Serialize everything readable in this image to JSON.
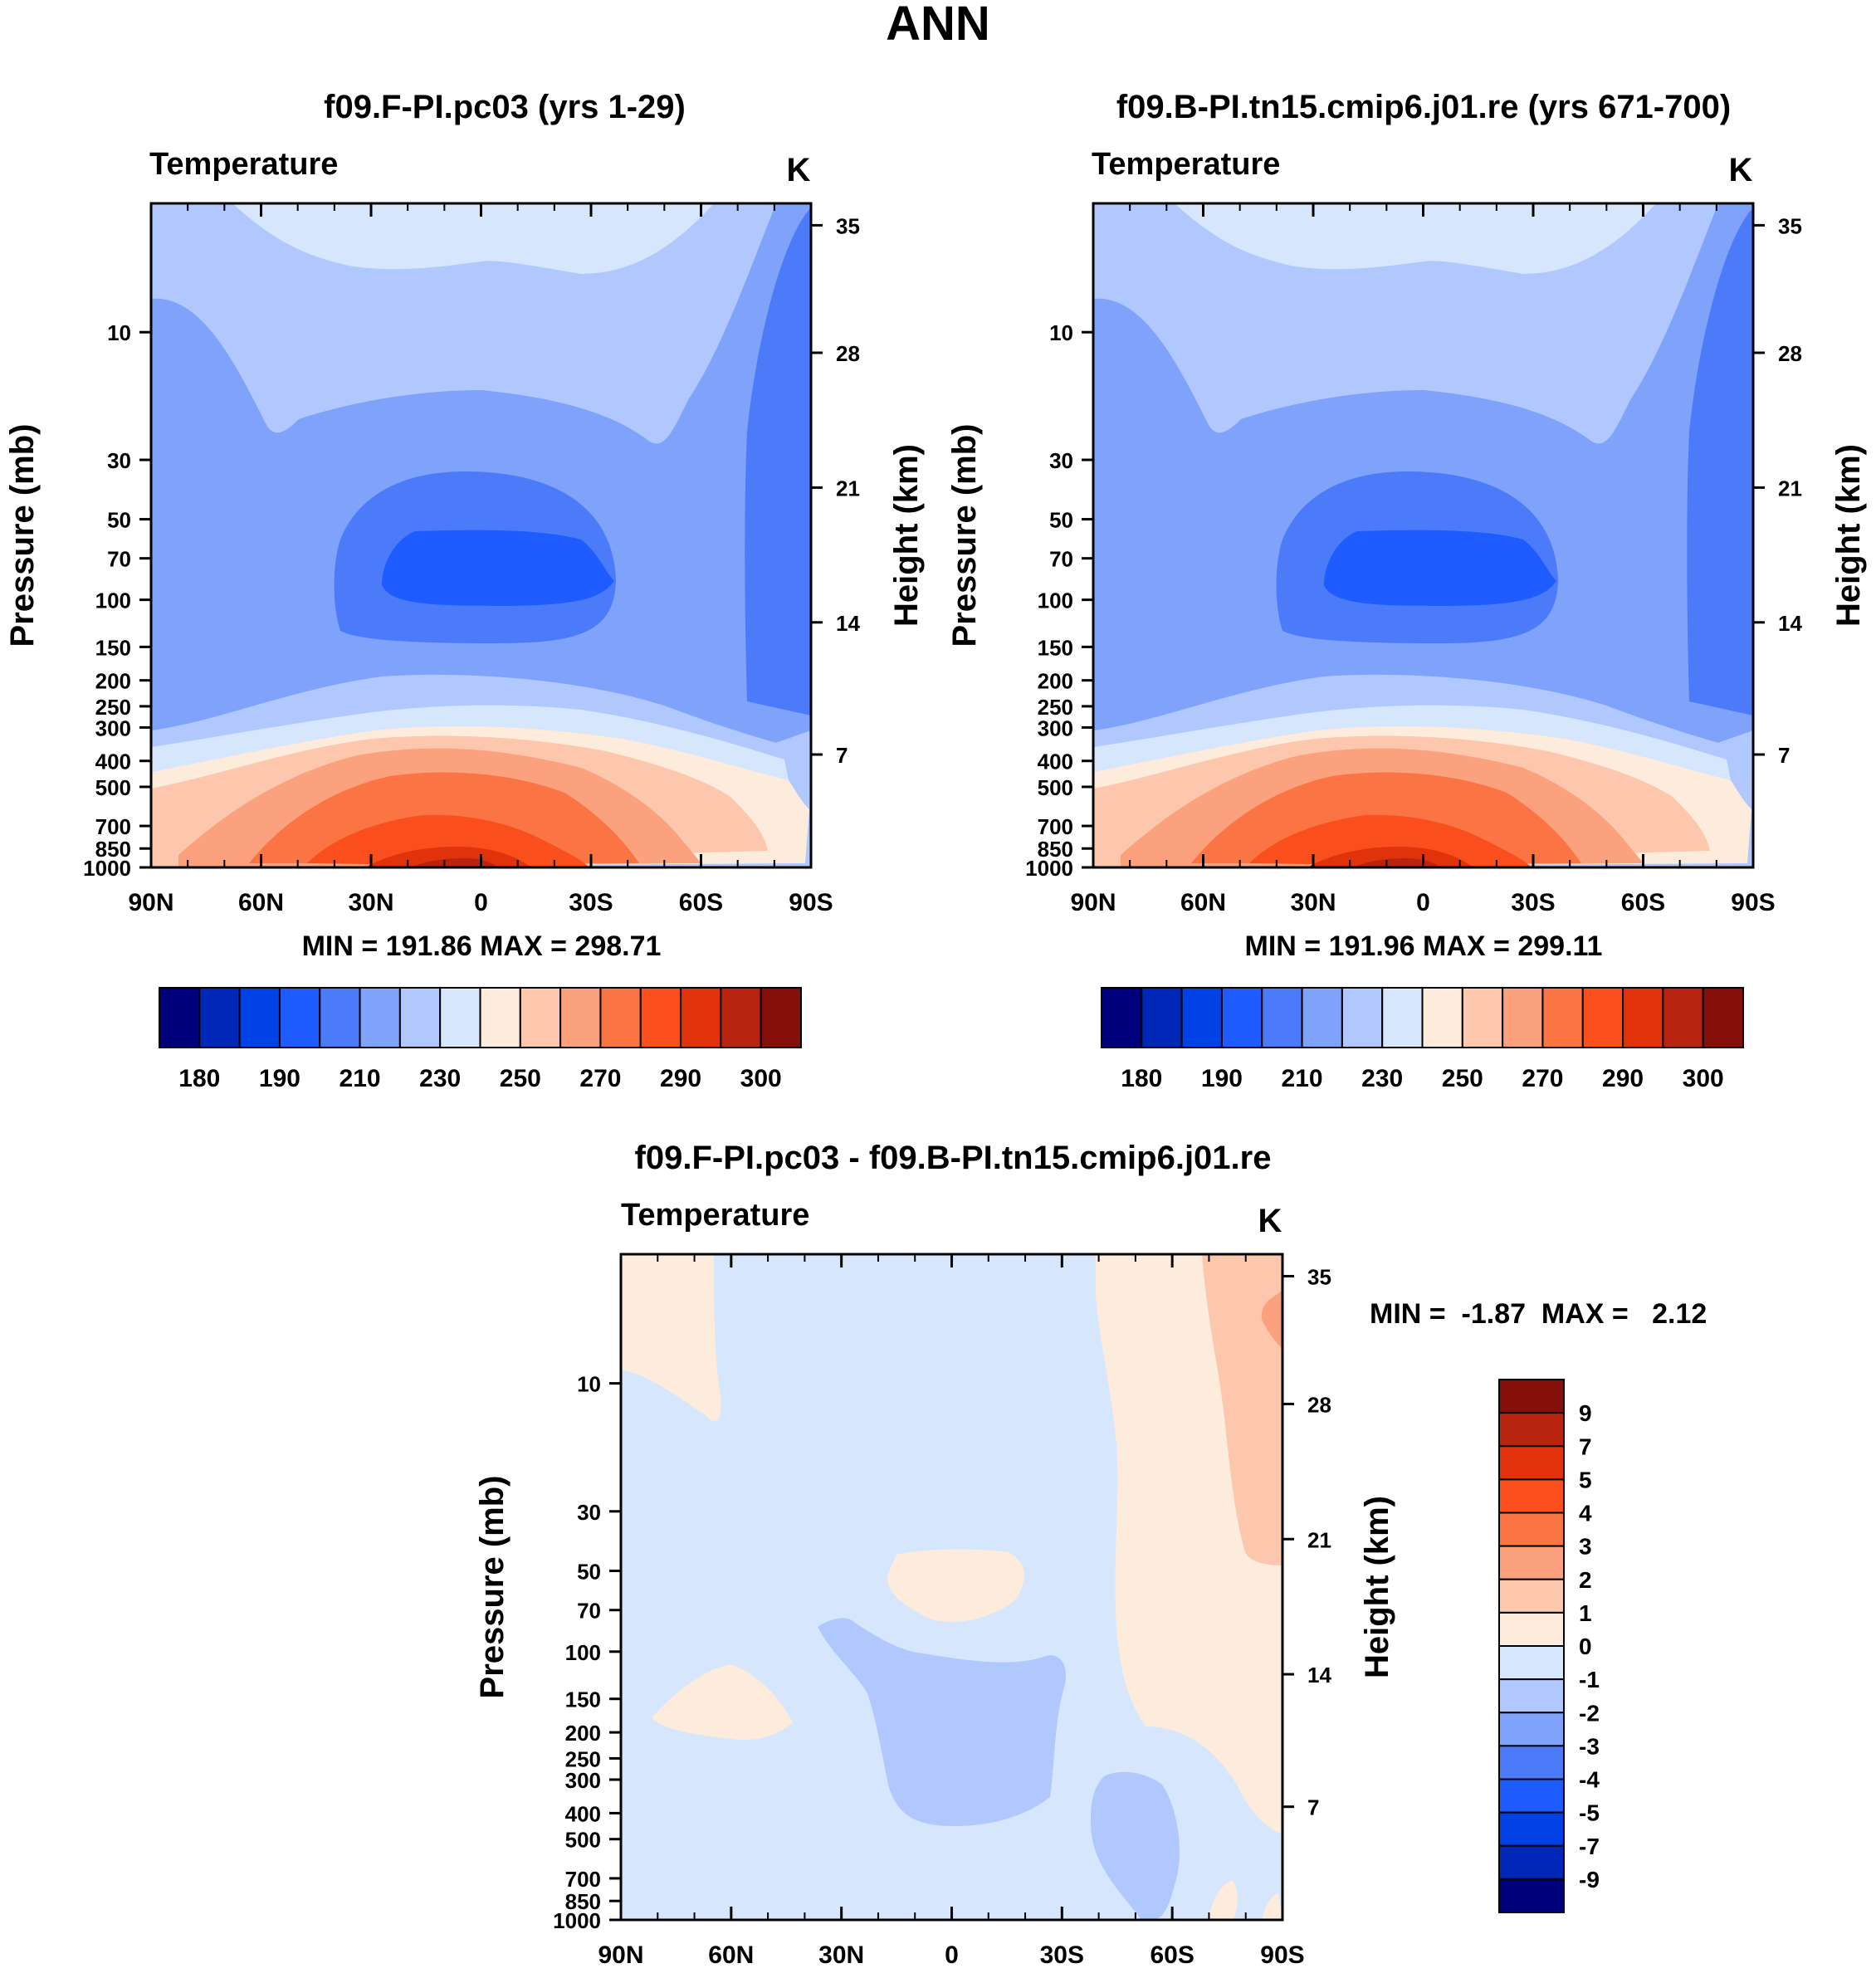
{
  "figure_title": "ANN",
  "colors": {
    "abs_levels": [
      "#00007d",
      "#0027b8",
      "#0042e6",
      "#1f5cff",
      "#4c7bfa",
      "#7fa2fb",
      "#b0c8fd",
      "#d6e6fd",
      "#fdecdc",
      "#fdc7ad",
      "#fca17d",
      "#fb7443",
      "#fa4f1d",
      "#e0330c",
      "#b82410",
      "#840f0b"
    ],
    "diff_levels": [
      "#00007d",
      "#0027b8",
      "#0042e6",
      "#1f5cff",
      "#4c7bfa",
      "#7fa2fb",
      "#b0c8fd",
      "#d6e6fd",
      "#fdecdc",
      "#fdc7ad",
      "#fca17d",
      "#fb7443",
      "#fa4f1d",
      "#e0330c",
      "#b82410",
      "#840f0b"
    ]
  },
  "chart_data": [
    {
      "type": "heatmap",
      "title": "f09.F-PI.pc03 (yrs 1-29)",
      "left_label": "Temperature",
      "right_label": "K",
      "xlabel": "",
      "ylabel": "Pressure (mb)",
      "y2label": "Height (km)",
      "x_ticks": [
        "90N",
        "60N",
        "30N",
        "0",
        "30S",
        "60S",
        "90S"
      ],
      "y_ticks": [
        "10",
        "30",
        "50",
        "70",
        "100",
        "150",
        "200",
        "250",
        "300",
        "400",
        "500",
        "700",
        "850",
        "1000"
      ],
      "y2_ticks": [
        "35",
        "28",
        "21",
        "14",
        "7"
      ],
      "stats": "MIN = 191.86  MAX = 298.71",
      "min": 191.86,
      "max": 298.71,
      "colorbar_labels": [
        "180",
        "190",
        "210",
        "230",
        "250",
        "270",
        "290",
        "300"
      ]
    },
    {
      "type": "heatmap",
      "title": "f09.B-PI.tn15.cmip6.j01.re (yrs 671-700)",
      "left_label": "Temperature",
      "right_label": "K",
      "xlabel": "",
      "ylabel": "Pressure (mb)",
      "y2label": "Height (km)",
      "x_ticks": [
        "90N",
        "60N",
        "30N",
        "0",
        "30S",
        "60S",
        "90S"
      ],
      "y_ticks": [
        "10",
        "30",
        "50",
        "70",
        "100",
        "150",
        "200",
        "250",
        "300",
        "400",
        "500",
        "700",
        "850",
        "1000"
      ],
      "y2_ticks": [
        "35",
        "28",
        "21",
        "14",
        "7"
      ],
      "stats": "MIN = 191.96  MAX = 299.11",
      "min": 191.96,
      "max": 299.11,
      "colorbar_labels": [
        "180",
        "190",
        "210",
        "230",
        "250",
        "270",
        "290",
        "300"
      ]
    },
    {
      "type": "heatmap",
      "title": "f09.F-PI.pc03 - f09.B-PI.tn15.cmip6.j01.re",
      "left_label": "Temperature",
      "right_label": "K",
      "xlabel": "",
      "ylabel": "Pressure (mb)",
      "y2label": "Height (km)",
      "x_ticks": [
        "90N",
        "60N",
        "30N",
        "0",
        "30S",
        "60S",
        "90S"
      ],
      "y_ticks": [
        "10",
        "30",
        "50",
        "70",
        "100",
        "150",
        "200",
        "250",
        "300",
        "400",
        "500",
        "700",
        "850",
        "1000"
      ],
      "y2_ticks": [
        "35",
        "28",
        "21",
        "14",
        "7"
      ],
      "stats": "MIN =  -1.87  MAX =   2.12",
      "min": -1.87,
      "max": 2.12,
      "colorbar_labels": [
        "9",
        "7",
        "5",
        "4",
        "3",
        "2",
        "1",
        "0",
        "-1",
        "-2",
        "-3",
        "-4",
        "-5",
        "-7",
        "-9"
      ]
    }
  ]
}
